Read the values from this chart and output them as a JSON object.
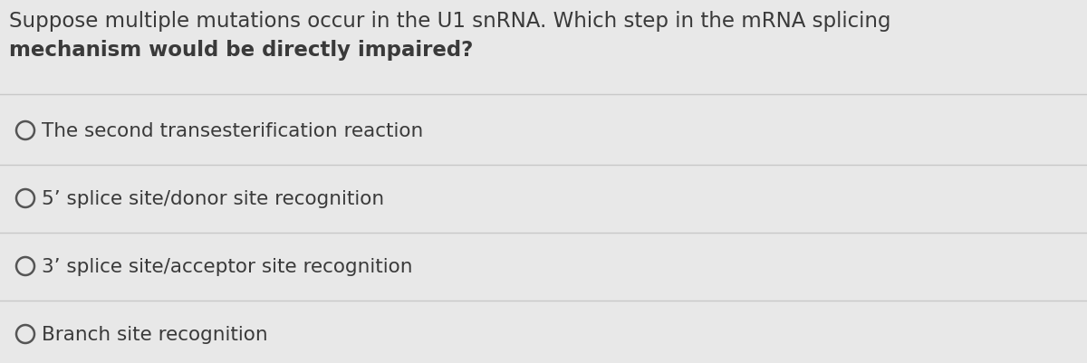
{
  "question_line1": "Suppose multiple mutations occur in the U1 snRNA. Which step in the mRNA splicing",
  "question_line2": "mechanism would be directly impaired?",
  "options": [
    "The second transesterification reaction",
    "5’ splice site/donor site recognition",
    "3’ splice site/acceptor site recognition",
    "Branch site recognition"
  ],
  "background_color": "#e8e8e8",
  "text_color": "#3a3a3a",
  "line_color": "#c8c8c8",
  "question_fontsize": 16.5,
  "option_fontsize": 15.5,
  "circle_color": "#555555",
  "circle_linewidth": 1.8
}
